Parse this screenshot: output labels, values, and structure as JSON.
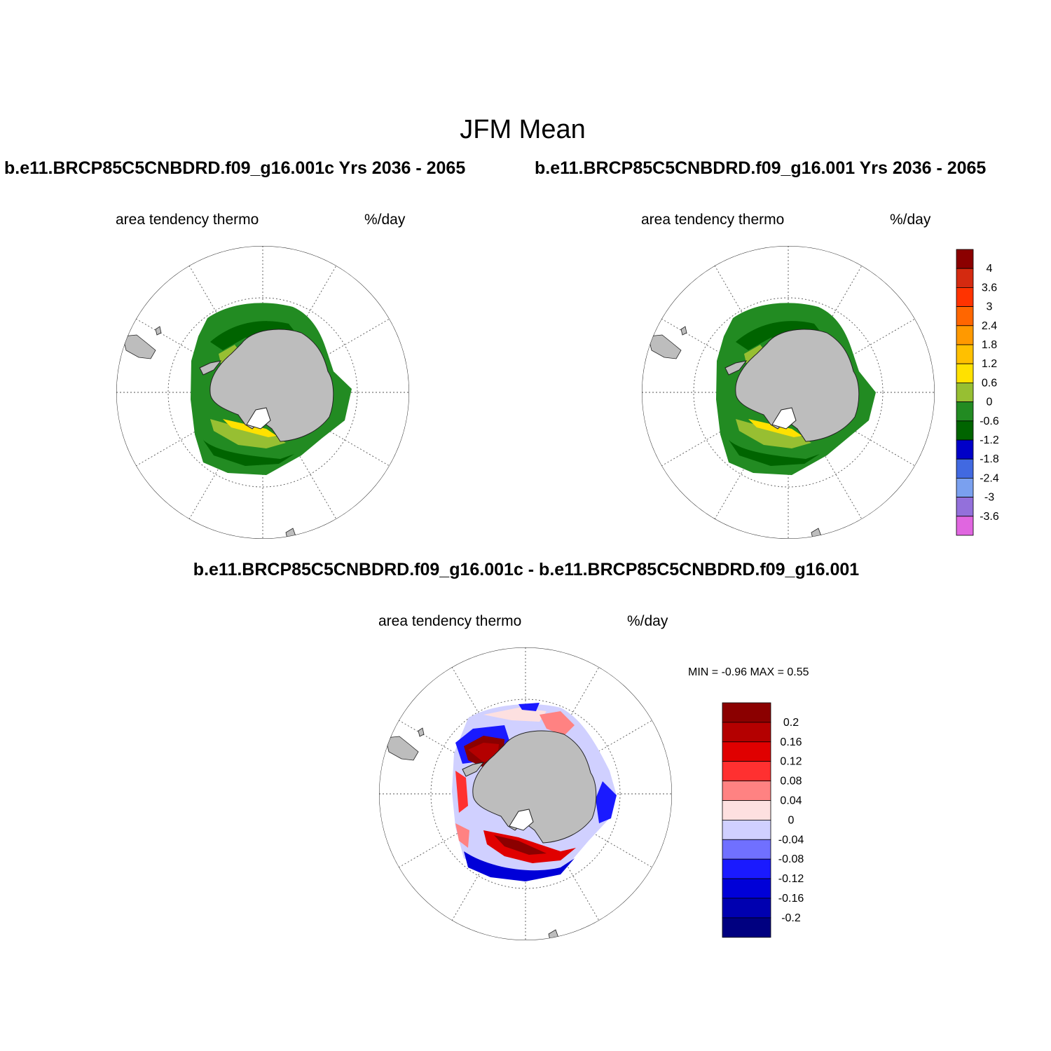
{
  "figure": {
    "title": "JFM Mean",
    "case_left_title": "b.e11.BRCP85C5CNBDRD.f09_g16.001c  Yrs 2036 - 2065",
    "case_right_title": "b.e11.BRCP85C5CNBDRD.f09_g16.001  Yrs 2036 - 2065",
    "diff_title": "b.e11.BRCP85C5CNBDRD.f09_g16.001c - b.e11.BRCP85C5CNBDRD.f09_g16.001"
  },
  "panels": {
    "left": {
      "variable": "area tendency thermo",
      "units": "%/day"
    },
    "right": {
      "variable": "area tendency thermo",
      "units": "%/day"
    },
    "diff": {
      "variable": "area tendency thermo",
      "units": "%/day",
      "minmax": "MIN =  -0.96 MAX =   0.55"
    }
  },
  "colorbar_main": {
    "labels": [
      "4",
      "3.6",
      "3",
      "2.4",
      "1.8",
      "1.2",
      "0.6",
      "0",
      "-0.6",
      "-1.2",
      "-1.8",
      "-2.4",
      "-3",
      "-3.6"
    ],
    "colors": [
      "#8b0000",
      "#d42a10",
      "#ff3300",
      "#ff6600",
      "#ff9900",
      "#ffc000",
      "#ffe100",
      "#97bf32",
      "#228b22",
      "#006400",
      "#0000c8",
      "#4169e1",
      "#7aa0ef",
      "#9370db",
      "#e066e0"
    ]
  },
  "colorbar_diff": {
    "labels": [
      "0.2",
      "0.16",
      "0.12",
      "0.08",
      "0.04",
      "0",
      "-0.04",
      "-0.08",
      "-0.12",
      "-0.16",
      "-0.2"
    ],
    "colors": [
      "#8b0000",
      "#b40000",
      "#e00000",
      "#ff3030",
      "#ff8282",
      "#fde0e0",
      "#d0d0ff",
      "#7070ff",
      "#1a1aff",
      "#0000d8",
      "#0000b0",
      "#000080"
    ]
  },
  "map_colors": {
    "land": "#bdbdbd",
    "ocean": "#ffffff",
    "graticule": "#555555"
  }
}
